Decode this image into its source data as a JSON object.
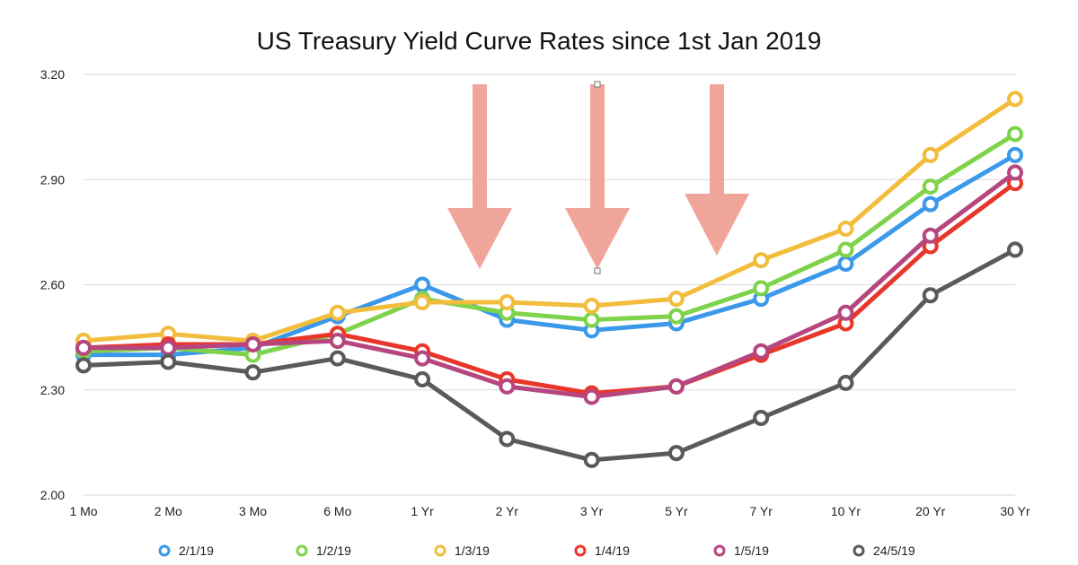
{
  "chart_data": {
    "type": "line",
    "title": "US Treasury Yield Curve Rates since 1st Jan 2019",
    "xlabel": "",
    "ylabel": "",
    "categories": [
      "1 Mo",
      "2 Mo",
      "3 Mo",
      "6 Mo",
      "1 Yr",
      "2 Yr",
      "3 Yr",
      "5 Yr",
      "7 Yr",
      "10 Yr",
      "20 Yr",
      "30 Yr"
    ],
    "ylim": [
      2.0,
      3.2
    ],
    "yticks": [
      "2.00",
      "2.30",
      "2.60",
      "2.90",
      "3.20"
    ],
    "grid": true,
    "legend_position": "bottom",
    "series": [
      {
        "name": "2/1/19",
        "color": "#3b98ea",
        "values": [
          2.4,
          2.4,
          2.42,
          2.51,
          2.6,
          2.5,
          2.47,
          2.49,
          2.56,
          2.66,
          2.83,
          2.97
        ]
      },
      {
        "name": "1/2/19",
        "color": "#7ed34a",
        "values": [
          2.41,
          2.42,
          2.4,
          2.46,
          2.56,
          2.52,
          2.5,
          2.51,
          2.59,
          2.7,
          2.88,
          3.03
        ]
      },
      {
        "name": "1/3/19",
        "color": "#f2bd3c",
        "values": [
          2.44,
          2.46,
          2.44,
          2.52,
          2.55,
          2.55,
          2.54,
          2.56,
          2.67,
          2.76,
          2.97,
          3.13
        ]
      },
      {
        "name": "1/4/19",
        "color": "#e8372a",
        "values": [
          2.42,
          2.43,
          2.43,
          2.46,
          2.41,
          2.33,
          2.29,
          2.31,
          2.4,
          2.49,
          2.71,
          2.89
        ]
      },
      {
        "name": "1/5/19",
        "color": "#b6467f",
        "values": [
          2.42,
          2.42,
          2.43,
          2.44,
          2.39,
          2.31,
          2.28,
          2.31,
          2.41,
          2.52,
          2.74,
          2.92
        ]
      },
      {
        "name": "24/5/19",
        "color": "#5a5a5a",
        "values": [
          2.37,
          2.38,
          2.35,
          2.39,
          2.33,
          2.16,
          2.1,
          2.12,
          2.22,
          2.32,
          2.57,
          2.7
        ]
      }
    ],
    "annotations": [
      {
        "kind": "down-arrow",
        "color": "#f0a59b",
        "at": "between 1 Yr and 2 Yr"
      },
      {
        "kind": "down-arrow",
        "color": "#f0a59b",
        "at": "3 Yr"
      },
      {
        "kind": "down-arrow",
        "color": "#f0a59b",
        "at": "between 5 Yr and 7 Yr"
      }
    ],
    "gridline_color": "#d9d9d9"
  }
}
